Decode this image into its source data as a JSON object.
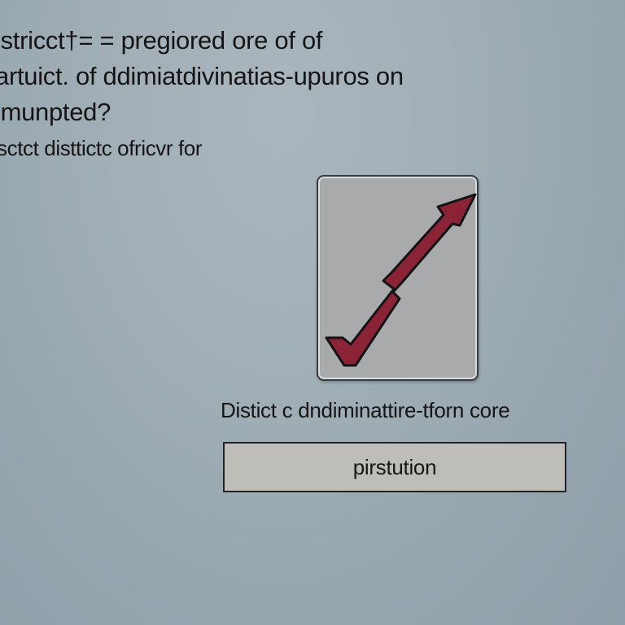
{
  "question": {
    "lines": [
      "istricct†= = pregiored ore of of",
      "artuict. of ddimiatdivinatias-upuros on",
      "imunpted?"
    ]
  },
  "subtitle": "sctct disttictc ofricvr for",
  "card": {
    "icon": "checkmark-arrow-icon",
    "icon_color": "#8a2336"
  },
  "caption": "Distict c dndiminattire-tforn core",
  "button": {
    "label": "pirstution"
  },
  "colors": {
    "background": "#a2afb7",
    "card_fill": "#a9aaab",
    "button_fill": "#bfbdb7",
    "text": "#151515"
  }
}
